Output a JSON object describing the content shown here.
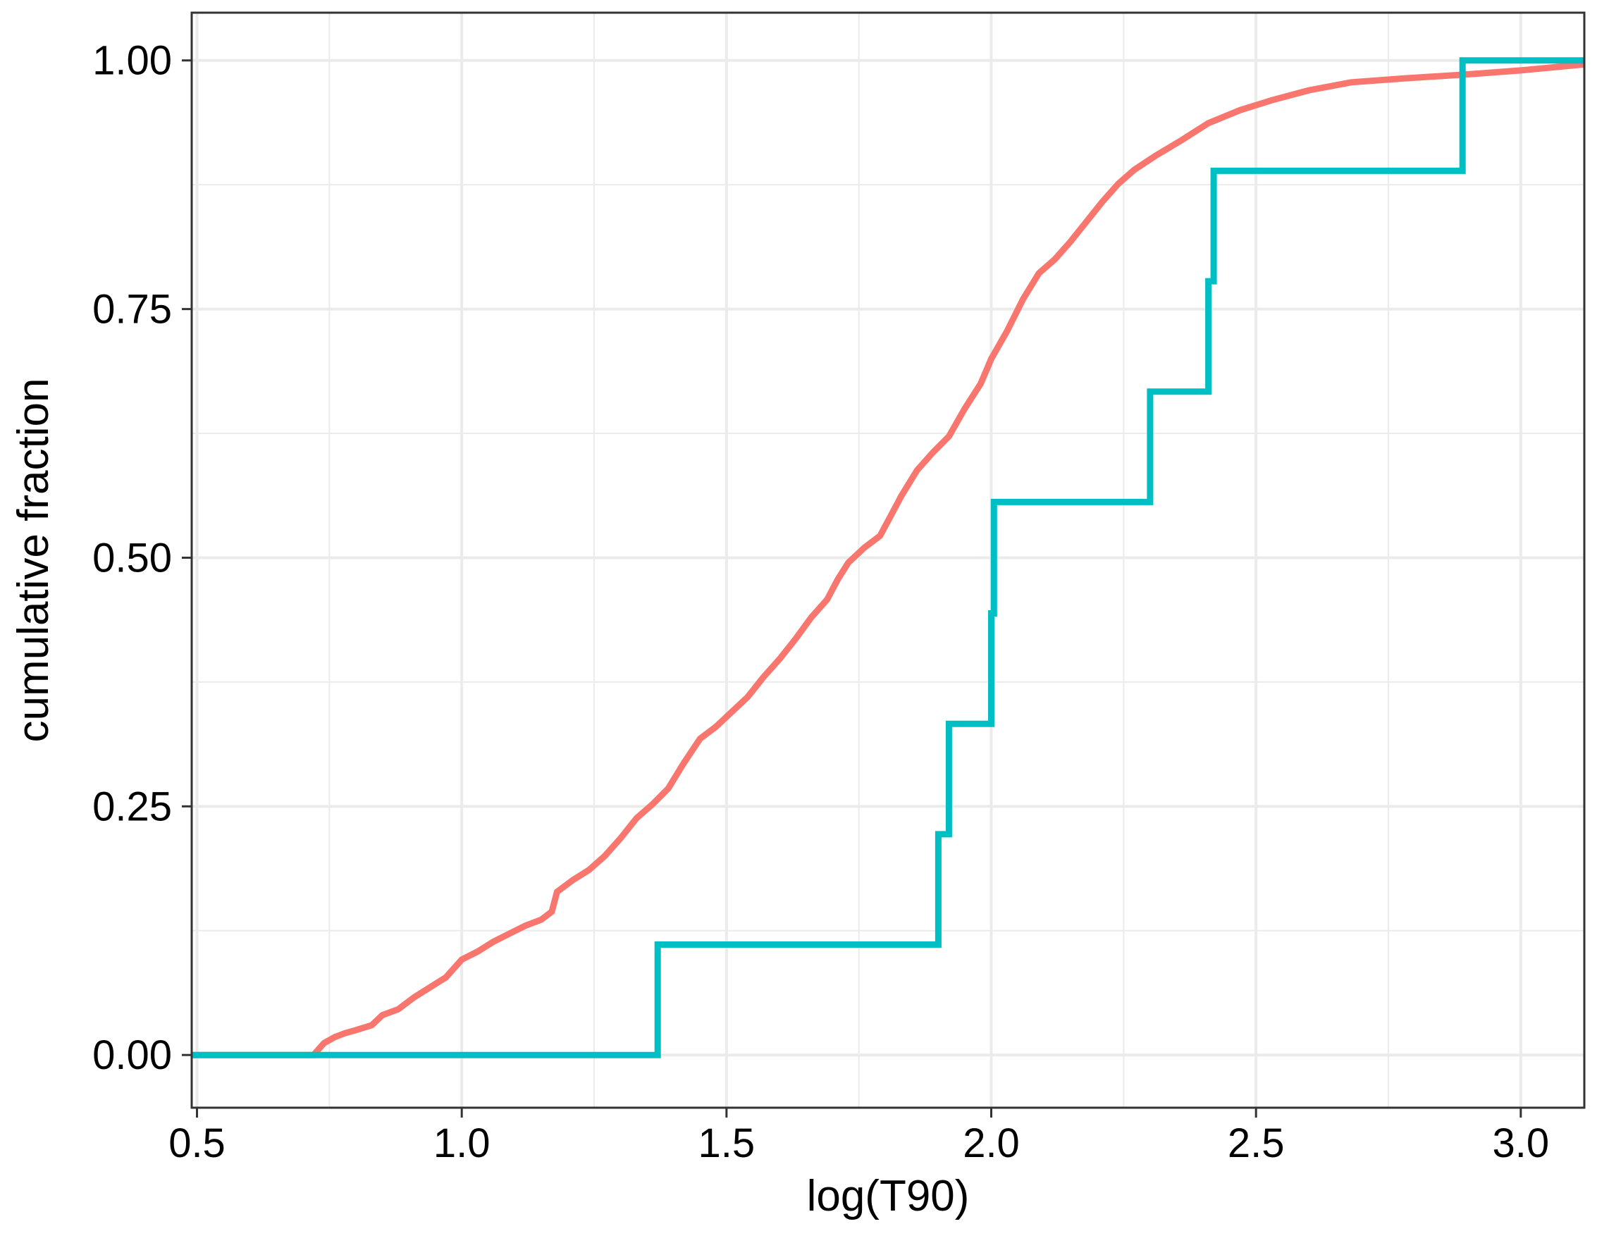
{
  "chart_data": {
    "type": "line",
    "step": true,
    "title": "",
    "xlabel": "log(T90)",
    "ylabel": "cumulative fraction",
    "xlim": [
      0.49,
      3.12
    ],
    "ylim": [
      -0.053,
      1.048
    ],
    "x_ticks": [
      0.5,
      1.0,
      1.5,
      2.0,
      2.5,
      3.0
    ],
    "x_tick_labels": [
      "0.5",
      "1.0",
      "1.5",
      "2.0",
      "2.5",
      "3.0"
    ],
    "y_ticks": [
      0.0,
      0.25,
      0.5,
      0.75,
      1.0
    ],
    "y_tick_labels": [
      "0.00",
      "0.25",
      "0.50",
      "0.75",
      "1.00"
    ],
    "grid": true,
    "legend": "none",
    "series": [
      {
        "color": "#F8766D",
        "points": [
          [
            0.49,
            0.0
          ],
          [
            0.72,
            0.0
          ],
          [
            0.74,
            0.012
          ],
          [
            0.76,
            0.018
          ],
          [
            0.78,
            0.022
          ],
          [
            0.8,
            0.025
          ],
          [
            0.83,
            0.03
          ],
          [
            0.85,
            0.04
          ],
          [
            0.88,
            0.046
          ],
          [
            0.91,
            0.058
          ],
          [
            0.94,
            0.068
          ],
          [
            0.97,
            0.078
          ],
          [
            1.0,
            0.096
          ],
          [
            1.03,
            0.104
          ],
          [
            1.06,
            0.114
          ],
          [
            1.09,
            0.122
          ],
          [
            1.12,
            0.13
          ],
          [
            1.15,
            0.136
          ],
          [
            1.17,
            0.144
          ],
          [
            1.18,
            0.164
          ],
          [
            1.21,
            0.176
          ],
          [
            1.24,
            0.186
          ],
          [
            1.27,
            0.2
          ],
          [
            1.3,
            0.218
          ],
          [
            1.33,
            0.238
          ],
          [
            1.36,
            0.252
          ],
          [
            1.39,
            0.268
          ],
          [
            1.42,
            0.294
          ],
          [
            1.45,
            0.318
          ],
          [
            1.48,
            0.33
          ],
          [
            1.51,
            0.345
          ],
          [
            1.54,
            0.36
          ],
          [
            1.57,
            0.38
          ],
          [
            1.6,
            0.398
          ],
          [
            1.63,
            0.418
          ],
          [
            1.66,
            0.44
          ],
          [
            1.69,
            0.458
          ],
          [
            1.71,
            0.478
          ],
          [
            1.73,
            0.495
          ],
          [
            1.76,
            0.51
          ],
          [
            1.79,
            0.522
          ],
          [
            1.81,
            0.542
          ],
          [
            1.83,
            0.562
          ],
          [
            1.86,
            0.588
          ],
          [
            1.89,
            0.606
          ],
          [
            1.92,
            0.622
          ],
          [
            1.95,
            0.65
          ],
          [
            1.98,
            0.675
          ],
          [
            2.0,
            0.7
          ],
          [
            2.03,
            0.728
          ],
          [
            2.06,
            0.76
          ],
          [
            2.09,
            0.786
          ],
          [
            2.12,
            0.8
          ],
          [
            2.15,
            0.818
          ],
          [
            2.18,
            0.838
          ],
          [
            2.21,
            0.858
          ],
          [
            2.24,
            0.876
          ],
          [
            2.27,
            0.89
          ],
          [
            2.31,
            0.904
          ],
          [
            2.36,
            0.92
          ],
          [
            2.41,
            0.937
          ],
          [
            2.47,
            0.95
          ],
          [
            2.53,
            0.96
          ],
          [
            2.6,
            0.97
          ],
          [
            2.68,
            0.978
          ],
          [
            2.78,
            0.982
          ],
          [
            2.9,
            0.986
          ],
          [
            3.0,
            0.99
          ],
          [
            3.12,
            0.996
          ]
        ]
      },
      {
        "color": "#00BFC4",
        "points": [
          [
            0.49,
            0.0
          ],
          [
            1.37,
            0.0
          ],
          [
            1.37,
            0.111
          ],
          [
            1.9,
            0.111
          ],
          [
            1.9,
            0.222
          ],
          [
            1.92,
            0.222
          ],
          [
            1.92,
            0.333
          ],
          [
            2.0,
            0.333
          ],
          [
            2.0,
            0.444
          ],
          [
            2.005,
            0.444
          ],
          [
            2.005,
            0.556
          ],
          [
            2.3,
            0.556
          ],
          [
            2.3,
            0.667
          ],
          [
            2.41,
            0.667
          ],
          [
            2.41,
            0.778
          ],
          [
            2.42,
            0.778
          ],
          [
            2.42,
            0.889
          ],
          [
            2.89,
            0.889
          ],
          [
            2.89,
            1.0
          ],
          [
            3.12,
            1.0
          ]
        ]
      }
    ]
  }
}
